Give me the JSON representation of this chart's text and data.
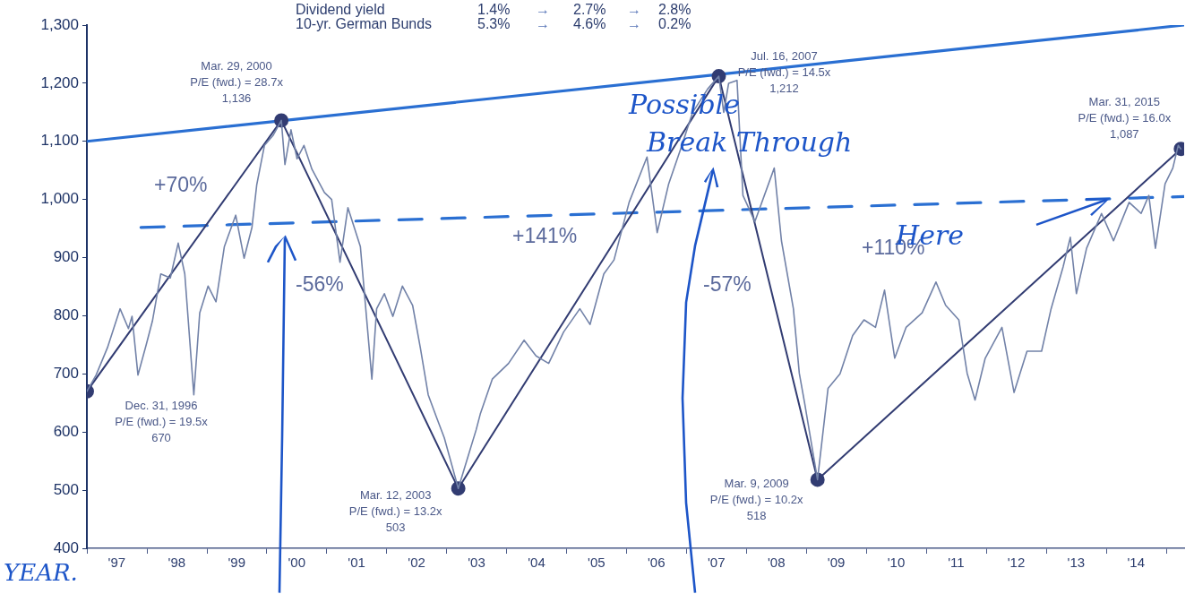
{
  "chart_data": {
    "type": "line",
    "xlim": [
      "1996-12-31",
      "2015-04-20"
    ],
    "xticks": [
      {
        "value": "1997-01-01",
        "label": null
      },
      {
        "value": "1997-07-01",
        "label": "'97"
      },
      {
        "value": "1998-01-01",
        "label": null
      },
      {
        "value": "1998-07-01",
        "label": "'98"
      },
      {
        "value": "1999-01-01",
        "label": null
      },
      {
        "value": "1999-07-01",
        "label": "'99"
      },
      {
        "value": "2000-01-01",
        "label": null
      },
      {
        "value": "2000-07-01",
        "label": "'00"
      },
      {
        "value": "2001-01-01",
        "label": null
      },
      {
        "value": "2001-07-01",
        "label": "'01"
      },
      {
        "value": "2002-01-01",
        "label": null
      },
      {
        "value": "2002-07-01",
        "label": "'02"
      },
      {
        "value": "2003-01-01",
        "label": null
      },
      {
        "value": "2003-07-01",
        "label": "'03"
      },
      {
        "value": "2004-01-01",
        "label": null
      },
      {
        "value": "2004-07-01",
        "label": "'04"
      },
      {
        "value": "2005-01-01",
        "label": null
      },
      {
        "value": "2005-07-01",
        "label": "'05"
      },
      {
        "value": "2006-01-01",
        "label": null
      },
      {
        "value": "2006-07-01",
        "label": "'06"
      },
      {
        "value": "2007-01-01",
        "label": null
      },
      {
        "value": "2007-07-01",
        "label": "'07"
      },
      {
        "value": "2008-01-01",
        "label": null
      },
      {
        "value": "2008-07-01",
        "label": "'08"
      },
      {
        "value": "2009-01-01",
        "label": null
      },
      {
        "value": "2009-07-01",
        "label": "'09"
      },
      {
        "value": "2010-01-01",
        "label": null
      },
      {
        "value": "2010-07-01",
        "label": "'10"
      },
      {
        "value": "2011-01-01",
        "label": null
      },
      {
        "value": "2011-07-01",
        "label": "'11"
      },
      {
        "value": "2012-01-01",
        "label": null
      },
      {
        "value": "2012-07-01",
        "label": "'12"
      },
      {
        "value": "2013-01-01",
        "label": null
      },
      {
        "value": "2013-07-01",
        "label": "'13"
      },
      {
        "value": "2014-01-01",
        "label": null
      },
      {
        "value": "2014-07-01",
        "label": "'14"
      },
      {
        "value": "2015-01-01",
        "label": null
      }
    ],
    "ylim": [
      400,
      1300
    ],
    "yticks": [
      400,
      500,
      600,
      700,
      800,
      900,
      {
        "value": 1000,
        "label": "1,000"
      },
      {
        "value": 1100,
        "label": "1,100"
      },
      {
        "value": 1200,
        "label": "1,200"
      },
      {
        "value": 1300,
        "label": "1,300"
      }
    ],
    "series": [
      {
        "color": "#7282a8",
        "marker": "none",
        "x": [
          "1996-12-31",
          "1997-02-25",
          "1997-05-05",
          "1997-07-21",
          "1997-09-10",
          "1997-10-02",
          "1997-11-07",
          "1997-12-28",
          "1998-02-03",
          "1998-03-26",
          "1998-05-23",
          "1998-07-10",
          "1998-08-19",
          "1998-10-13",
          "1998-11-18",
          "1999-01-08",
          "1999-02-25",
          "1999-04-17",
          "1999-06-25",
          "1999-08-15",
          "1999-10-02",
          "1999-10-31",
          "1999-12-17",
          "2000-02-07",
          "2000-03-29",
          "2000-04-20",
          "2000-05-27",
          "2000-07-03",
          "2000-08-14",
          "2000-10-02",
          "2000-12-17",
          "2001-01-30",
          "2001-03-22",
          "2001-05-09",
          "2001-07-24",
          "2001-10-02",
          "2001-10-31",
          "2001-12-17",
          "2002-02-07",
          "2002-04-06",
          "2002-06-07",
          "2002-07-24",
          "2002-09-10",
          "2002-10-31",
          "2002-12-17",
          "2003-03-12",
          "2003-06-29",
          "2003-07-24",
          "2003-10-05",
          "2004-01-12",
          "2004-04-16",
          "2004-06-28",
          "2004-09-13",
          "2004-12-13",
          "2005-03-22",
          "2005-05-23",
          "2005-08-15",
          "2005-10-16",
          "2006-01-16",
          "2006-05-05",
          "2006-07-06",
          "2006-09-14",
          "2006-11-26",
          "2007-02-07",
          "2007-05-09",
          "2007-07-16",
          "2007-08-15",
          "2007-09-14",
          "2007-11-04",
          "2007-12-10",
          "2008-02-21",
          "2008-06-18",
          "2008-08-01",
          "2008-10-13",
          "2008-11-18",
          "2008-12-21",
          "2009-03-09",
          "2009-05-12",
          "2009-07-24",
          "2009-10-09",
          "2009-12-17",
          "2010-02-25",
          "2010-04-21",
          "2010-06-22",
          "2010-08-30",
          "2010-12-06",
          "2011-02-28",
          "2011-04-28",
          "2011-07-17",
          "2011-09-06",
          "2011-10-24",
          "2011-12-25",
          "2012-04-05",
          "2012-06-18",
          "2012-09-05",
          "2012-12-03",
          "2013-01-30",
          "2013-04-13",
          "2013-05-27",
          "2013-07-03",
          "2013-09-03",
          "2013-12-03",
          "2014-02-14",
          "2014-05-20",
          "2014-08-01",
          "2014-09-17",
          "2014-10-27",
          "2014-12-25",
          "2015-02-10",
          "2015-03-15",
          "2015-03-31"
        ],
        "values": [
          670,
          698,
          745,
          812,
          778,
          799,
          698,
          751,
          791,
          872,
          865,
          925,
          872,
          664,
          805,
          851,
          824,
          919,
          973,
          899,
          952,
          1025,
          1093,
          1110,
          1136,
          1060,
          1120,
          1070,
          1093,
          1052,
          1012,
          1000,
          892,
          986,
          919,
          691,
          812,
          838,
          799,
          851,
          818,
          745,
          664,
          625,
          590,
          503,
          604,
          631,
          691,
          718,
          758,
          731,
          718,
          772,
          812,
          785,
          872,
          896,
          995,
          1073,
          943,
          1027,
          1087,
          1150,
          1190,
          1212,
          1150,
          1200,
          1205,
          1007,
          962,
          1054,
          929,
          812,
          701,
          649,
          518,
          675,
          700,
          766,
          793,
          780,
          844,
          727,
          780,
          805,
          858,
          818,
          793,
          701,
          655,
          727,
          780,
          668,
          739,
          739,
          812,
          884,
          935,
          838,
          916,
          976,
          929,
          995,
          976,
          1007,
          916,
          1027,
          1054,
          1093,
          1087
        ]
      },
      {
        "color": "#323c72",
        "marker": "circle",
        "x": [
          "1996-12-31",
          "2000-03-29",
          "2003-03-12",
          "2007-07-16",
          "2009-03-09",
          "2015-03-31"
        ],
        "values": [
          670,
          1136,
          503,
          1212,
          518,
          1087
        ]
      },
      {
        "color": "#2a6fd2",
        "marker": "none",
        "x": [
          "1996-12-31",
          "2015-04-20"
        ],
        "values": [
          1100,
          1300
        ]
      },
      {
        "color": "#2a6fd2",
        "marker": "none",
        "line_style": "dashed",
        "x": [
          "1997-11-25",
          "2015-04-20"
        ],
        "values": [
          952,
          1005
        ]
      }
    ],
    "annotations": [
      "Dividend yield  1.4%  →  2.7%  →  2.8%",
      "10-yr. German Bunds  5.3%  →  4.6%  →  0.2%",
      {
        "text": "Dec. 31, 1996\nP/E (fwd.) = 19.5x\n670",
        "x": "1996-12-31",
        "y": 670
      },
      {
        "text": "Mar. 29, 2000\nP/E (fwd.) = 28.7x\n1,136",
        "x": "2000-03-29",
        "y": 1136
      },
      {
        "text": "Mar. 12, 2003\nP/E (fwd.) = 13.2x\n503",
        "x": "2003-03-12",
        "y": 503
      },
      {
        "text": "Jul. 16, 2007\nP/E (fwd.) = 14.5x\n1,212",
        "x": "2007-07-16",
        "y": 1212
      },
      {
        "text": "Mar. 9, 2009\nP/E (fwd.) = 10.2x\n518",
        "x": "2009-03-09",
        "y": 518
      },
      {
        "text": "Mar. 31, 2015\nP/E (fwd.) = 16.0x\n1,087",
        "x": "2015-03-31",
        "y": 1087
      },
      "+70%",
      "-56%",
      "+141%",
      "-57%",
      "+110%",
      "Possible\nBreak Through\nHere",
      "YEAR."
    ]
  }
}
